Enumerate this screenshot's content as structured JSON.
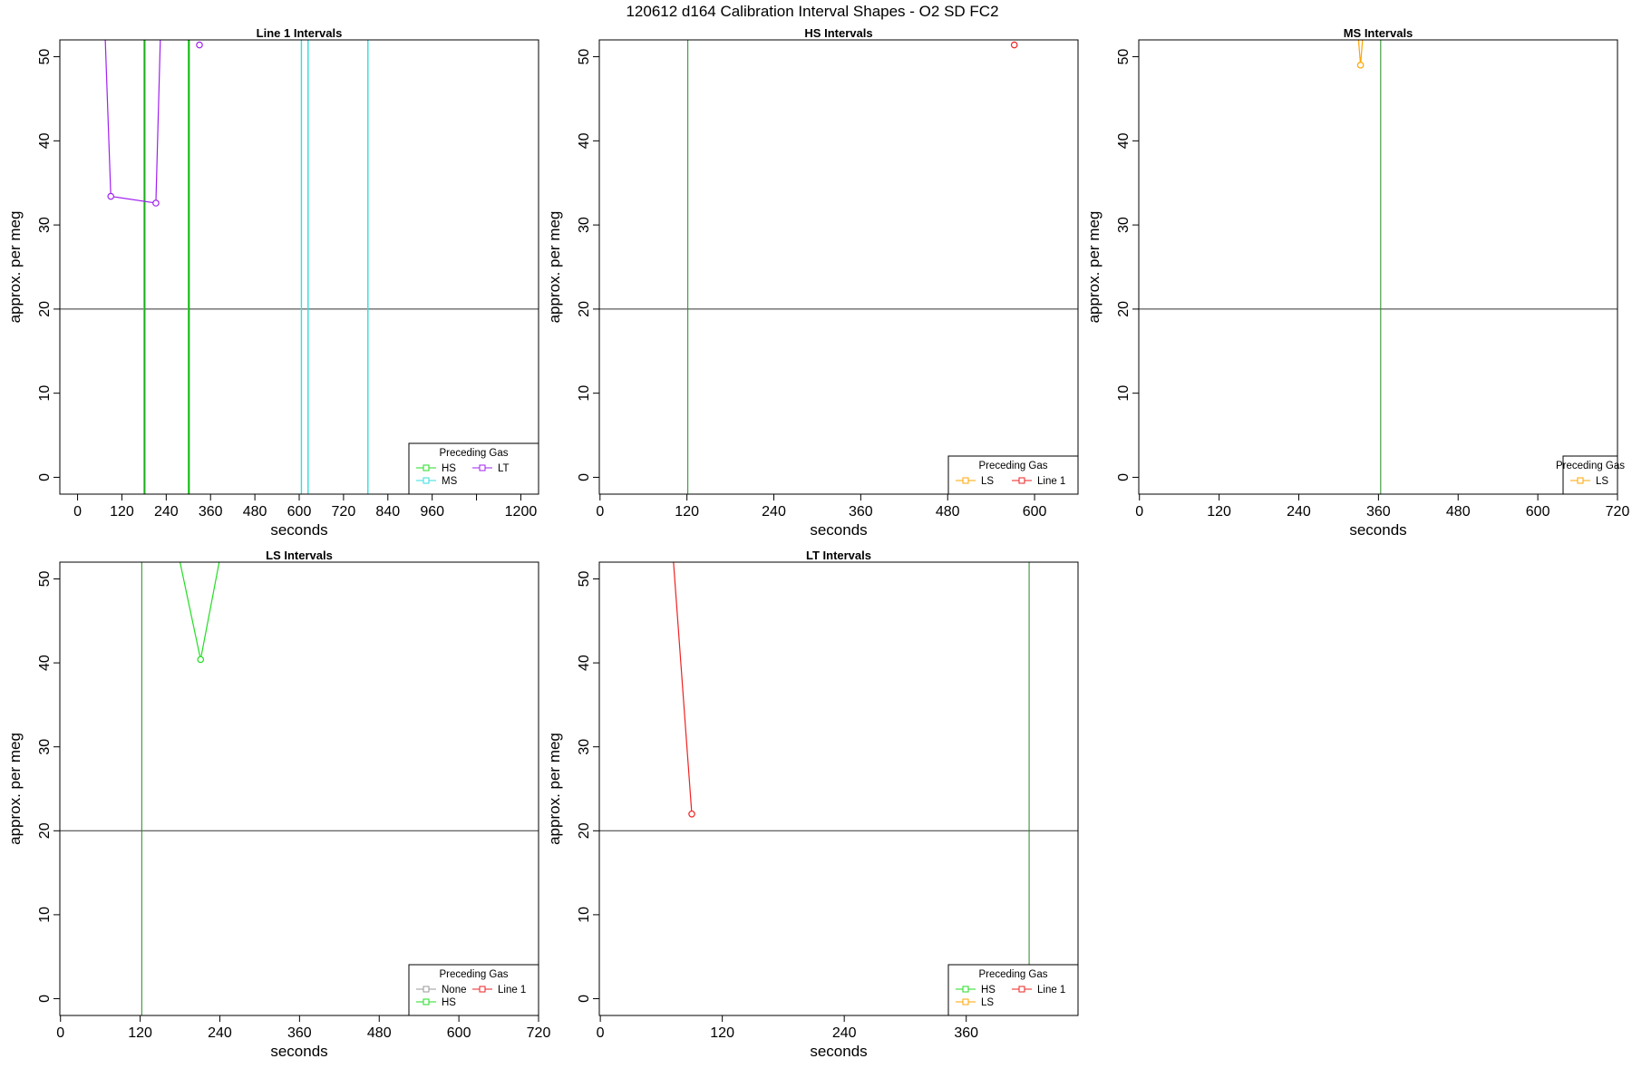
{
  "figure": {
    "title": "120612   d164   Calibration Interval Shapes - O2 SD FC2"
  },
  "chart_data": [
    {
      "type": "line",
      "title": "Line 1 Intervals",
      "xlabel": "seconds",
      "ylabel": "approx. per meg",
      "xlim": [
        -48,
        1248
      ],
      "ylim": [
        -2,
        52
      ],
      "xticks": [
        0,
        120,
        240,
        360,
        480,
        600,
        720,
        840,
        960,
        1080,
        1200
      ],
      "xtick_labels": [
        "0",
        "120",
        "240",
        "360",
        "480",
        "600",
        "720",
        "840",
        "960",
        "",
        "1200"
      ],
      "yticks": [
        0,
        10,
        20,
        30,
        40,
        50
      ],
      "hline": 20,
      "legend": {
        "title": "Preceding Gas",
        "position": "bottom-right",
        "columns": 2,
        "entries": [
          {
            "label": "HS",
            "color": "#22dd22"
          },
          {
            "label": "LT",
            "color": "#a020f0"
          },
          {
            "label": "MS",
            "color": "#33dddd"
          }
        ]
      },
      "series": [
        {
          "label": "HS",
          "color": "#22dd22",
          "vlines": [
            180,
            300
          ]
        },
        {
          "label": "MS",
          "color": "#33dddd",
          "vlines": [
            606,
            624,
            786
          ]
        },
        {
          "label": "LT",
          "color": "#a020f0",
          "lines": [
            [
              [
                75,
                52
              ],
              [
                90,
                33.4
              ],
              [
                212,
                32.6
              ],
              [
                224,
                52
              ]
            ]
          ],
          "points": [
            [
              90,
              33.4
            ],
            [
              212,
              32.6
            ],
            [
              330,
              51.4
            ]
          ]
        }
      ],
      "dark_vlines": [
        180,
        300
      ]
    },
    {
      "type": "line",
      "title": "HS Intervals",
      "xlabel": "seconds",
      "ylabel": "approx. per meg",
      "xlim": [
        -1,
        660
      ],
      "ylim": [
        -2,
        52
      ],
      "xticks": [
        0,
        120,
        240,
        360,
        480,
        600
      ],
      "xtick_labels": [
        "0",
        "120",
        "240",
        "360",
        "480",
        "600"
      ],
      "yticks": [
        0,
        10,
        20,
        30,
        40,
        50
      ],
      "hline": 20,
      "legend": {
        "title": "Preceding Gas",
        "position": "bottom-right",
        "columns": 2,
        "entries": [
          {
            "label": "LS",
            "color": "#ffa500"
          },
          {
            "label": "Line 1",
            "color": "#ee2222"
          }
        ]
      },
      "series": [
        {
          "label": "Line 1",
          "color": "#ee2222",
          "lines": [],
          "points": [
            [
              572,
              51.4
            ]
          ]
        }
      ],
      "dark_vlines": [
        120
      ]
    },
    {
      "type": "line",
      "title": "MS Intervals",
      "xlabel": "seconds",
      "ylabel": "approx. per meg",
      "xlim": [
        -1,
        720
      ],
      "ylim": [
        -2,
        52
      ],
      "xticks": [
        0,
        120,
        240,
        360,
        480,
        600,
        720
      ],
      "xtick_labels": [
        "0",
        "120",
        "240",
        "360",
        "480",
        "600",
        "720"
      ],
      "yticks": [
        0,
        10,
        20,
        30,
        40,
        50
      ],
      "hline": 20,
      "legend": {
        "title": "Preceding Gas",
        "position": "bottom-right",
        "columns": 1,
        "entries": [
          {
            "label": "LS",
            "color": "#ffa500"
          }
        ]
      },
      "series": [
        {
          "label": "LS",
          "color": "#ffa500",
          "lines": [
            [
              [
                330,
                52
              ],
              [
                333,
                49
              ],
              [
                336,
                52
              ]
            ]
          ],
          "points": [
            [
              333,
              49
            ]
          ]
        }
      ],
      "dark_vlines": [
        362
      ]
    },
    {
      "type": "line",
      "title": "LS Intervals",
      "xlabel": "seconds",
      "ylabel": "approx. per meg",
      "xlim": [
        -1,
        720
      ],
      "ylim": [
        -2,
        52
      ],
      "xticks": [
        0,
        120,
        240,
        360,
        480,
        600,
        720
      ],
      "xtick_labels": [
        "0",
        "120",
        "240",
        "360",
        "480",
        "600",
        "720"
      ],
      "yticks": [
        0,
        10,
        20,
        30,
        40,
        50
      ],
      "hline": 20,
      "legend": {
        "title": "Preceding Gas",
        "position": "bottom-right",
        "columns": 2,
        "entries": [
          {
            "label": "None",
            "color": "#999999"
          },
          {
            "label": "Line 1",
            "color": "#ee2222"
          },
          {
            "label": "HS",
            "color": "#22dd22"
          }
        ]
      },
      "series": [
        {
          "label": "HS",
          "color": "#22dd22",
          "lines": [
            [
              [
                180,
                52
              ],
              [
                211,
                40.4
              ],
              [
                239,
                52
              ]
            ]
          ],
          "points": [
            [
              211,
              40.4
            ]
          ]
        }
      ],
      "dark_vlines": [
        121
      ]
    },
    {
      "type": "line",
      "title": "LT Intervals",
      "xlabel": "seconds",
      "ylabel": "approx. per meg",
      "xlim": [
        -1,
        470
      ],
      "ylim": [
        -2,
        52
      ],
      "xticks": [
        0,
        120,
        240,
        360
      ],
      "xtick_labels": [
        "0",
        "120",
        "240",
        "360"
      ],
      "yticks": [
        0,
        10,
        20,
        30,
        40,
        50
      ],
      "hline": 20,
      "legend": {
        "title": "Preceding Gas",
        "position": "bottom-right",
        "columns": 2,
        "entries": [
          {
            "label": "HS",
            "color": "#22dd22"
          },
          {
            "label": "Line 1",
            "color": "#ee2222"
          },
          {
            "label": "LS",
            "color": "#ffa500"
          }
        ]
      },
      "series": [
        {
          "label": "Line 1",
          "color": "#ee2222",
          "lines": [
            [
              [
                72,
                52
              ],
              [
                90,
                22
              ]
            ]
          ],
          "points": [
            [
              90,
              22
            ]
          ]
        }
      ],
      "dark_vlines": [
        421
      ]
    }
  ]
}
